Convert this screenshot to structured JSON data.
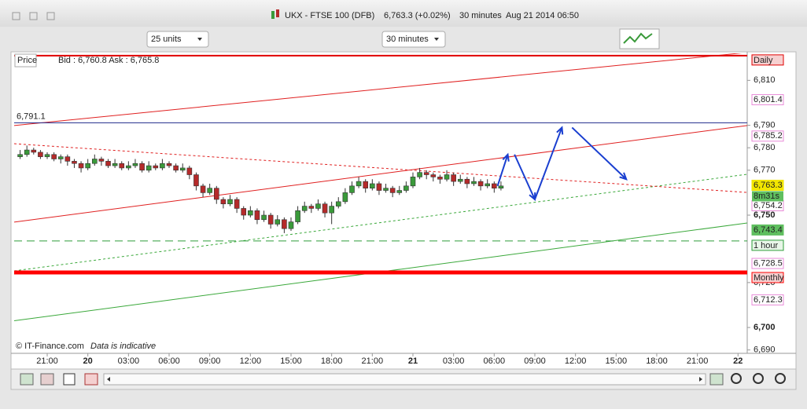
{
  "window": {
    "title": "UKX - FTSE 100 (DFB)",
    "quote": "6,763.3 (+0.02%)",
    "interval": "30 minutes",
    "timestamp": "Aug 21 2014 06:50"
  },
  "toolbar": {
    "units": "25 units",
    "interval": "30 minutes"
  },
  "chart_data": {
    "type": "candlestick",
    "price_label": "Price",
    "bid_ask": "Bid : 6,760.8 Ask : 6,765.8",
    "credit": "© IT-Finance.com",
    "disclaimer": "Data is indicative",
    "countdown": "8m31s",
    "up_color": "#3a9a3a",
    "down_color": "#b52a2a",
    "ylim": [
      6688.5,
      6822
    ],
    "xlim": [
      -0.88,
      107.36
    ],
    "yticks": [
      {
        "value": 6690,
        "label": "6,690"
      },
      {
        "value": 6700,
        "label": "6,700"
      },
      {
        "value": 6720,
        "label": "6,720"
      },
      {
        "value": 6750,
        "label": "6,750"
      },
      {
        "value": 6770,
        "label": "6,770"
      },
      {
        "value": 6780,
        "label": "6,780"
      },
      {
        "value": 6790,
        "label": "6,790"
      },
      {
        "value": 6810,
        "label": "6,810"
      }
    ],
    "xticks": [
      {
        "value": 4,
        "label": "21:00"
      },
      {
        "value": 10,
        "label": "20"
      },
      {
        "value": 16,
        "label": "03:00"
      },
      {
        "value": 22,
        "label": "06:00"
      },
      {
        "value": 28,
        "label": "09:00"
      },
      {
        "value": 34,
        "label": "12:00"
      },
      {
        "value": 40,
        "label": "15:00"
      },
      {
        "value": 46,
        "label": "18:00"
      },
      {
        "value": 52,
        "label": "21:00"
      },
      {
        "value": 58,
        "label": "21"
      },
      {
        "value": 64,
        "label": "03:00"
      },
      {
        "value": 70,
        "label": "06:00"
      },
      {
        "value": 76,
        "label": "09:00"
      },
      {
        "value": 82,
        "label": "12:00"
      },
      {
        "value": 88,
        "label": "15:00"
      },
      {
        "value": 94,
        "label": "18:00"
      },
      {
        "value": 100,
        "label": "21:00"
      },
      {
        "value": 106,
        "label": "22"
      }
    ],
    "candles": [
      [
        6776,
        6779,
        6775,
        6777
      ],
      [
        6777,
        6781,
        6776,
        6779
      ],
      [
        6779,
        6780,
        6777,
        6778
      ],
      [
        6778,
        6779,
        6775,
        6776
      ],
      [
        6776,
        6778,
        6775,
        6777
      ],
      [
        6777,
        6778,
        6774,
        6775
      ],
      [
        6775,
        6777,
        6773,
        6776
      ],
      [
        6776,
        6777,
        6772,
        6774
      ],
      [
        6774,
        6775,
        6771,
        6773
      ],
      [
        6773,
        6774,
        6769,
        6771
      ],
      [
        6771,
        6775,
        6770,
        6773
      ],
      [
        6773,
        6777,
        6772,
        6775
      ],
      [
        6775,
        6776,
        6772,
        6774
      ],
      [
        6774,
        6775,
        6771,
        6772
      ],
      [
        6772,
        6775,
        6771,
        6773
      ],
      [
        6773,
        6774,
        6770,
        6771
      ],
      [
        6771,
        6774,
        6770,
        6772
      ],
      [
        6772,
        6775,
        6771,
        6773
      ],
      [
        6773,
        6774,
        6769,
        6770
      ],
      [
        6770,
        6774,
        6769,
        6772
      ],
      [
        6772,
        6773,
        6770,
        6771
      ],
      [
        6771,
        6775,
        6770,
        6773
      ],
      [
        6773,
        6774,
        6771,
        6772
      ],
      [
        6772,
        6773,
        6769,
        6770
      ],
      [
        6770,
        6773,
        6769,
        6771
      ],
      [
        6771,
        6772,
        6766,
        6768
      ],
      [
        6768,
        6769,
        6761,
        6763
      ],
      [
        6763,
        6764,
        6758,
        6760
      ],
      [
        6760,
        6764,
        6759,
        6762
      ],
      [
        6762,
        6763,
        6755,
        6757
      ],
      [
        6757,
        6758,
        6753,
        6755
      ],
      [
        6755,
        6759,
        6754,
        6757
      ],
      [
        6757,
        6758,
        6751,
        6753
      ],
      [
        6753,
        6754,
        6748,
        6750
      ],
      [
        6750,
        6754,
        6749,
        6752
      ],
      [
        6752,
        6753,
        6746,
        6748
      ],
      [
        6748,
        6752,
        6747,
        6750
      ],
      [
        6750,
        6751,
        6744,
        6746
      ],
      [
        6746,
        6750,
        6745,
        6748
      ],
      [
        6748,
        6749,
        6742,
        6744
      ],
      [
        6744,
        6749,
        6743,
        6747
      ],
      [
        6747,
        6754,
        6746,
        6752
      ],
      [
        6752,
        6756,
        6751,
        6754
      ],
      [
        6754,
        6755,
        6751,
        6753
      ],
      [
        6753,
        6757,
        6752,
        6755
      ],
      [
        6755,
        6756,
        6749,
        6751
      ],
      [
        6751,
        6756,
        6746,
        6754
      ],
      [
        6754,
        6758,
        6753,
        6756
      ],
      [
        6756,
        6762,
        6755,
        6760
      ],
      [
        6760,
        6765,
        6759,
        6763
      ],
      [
        6763,
        6767,
        6762,
        6765
      ],
      [
        6765,
        6766,
        6760,
        6762
      ],
      [
        6762,
        6766,
        6761,
        6764
      ],
      [
        6764,
        6765,
        6759,
        6761
      ],
      [
        6761,
        6764,
        6760,
        6762
      ],
      [
        6762,
        6763,
        6758,
        6760
      ],
      [
        6760,
        6763,
        6759,
        6761
      ],
      [
        6761,
        6765,
        6760,
        6763
      ],
      [
        6763,
        6769,
        6762,
        6767
      ],
      [
        6767,
        6771,
        6766,
        6769
      ],
      [
        6769,
        6770,
        6766,
        6768
      ],
      [
        6768,
        6769,
        6765,
        6767
      ],
      [
        6767,
        6768,
        6764,
        6766
      ],
      [
        6766,
        6770,
        6765,
        6768
      ],
      [
        6768,
        6769,
        6763,
        6765
      ],
      [
        6765,
        6768,
        6764,
        6766
      ],
      [
        6766,
        6767,
        6762,
        6764
      ],
      [
        6764,
        6767,
        6763,
        6765
      ],
      [
        6765,
        6766,
        6761,
        6763
      ],
      [
        6763,
        6766,
        6762,
        6764
      ],
      [
        6764,
        6765,
        6760,
        6762
      ],
      [
        6762,
        6765,
        6761,
        6763
      ]
    ],
    "levels": [
      {
        "value": 6821,
        "label": "Daily",
        "color": "#e00000",
        "width": 2,
        "dash": false,
        "label_side": "right"
      },
      {
        "value": 6791.1,
        "label": "6,791.1",
        "color": "#1f2a8c",
        "width": 1,
        "dash": false,
        "label_side": "left"
      },
      {
        "value": 6738.5,
        "label": "1 hour",
        "color": "#2e9e3a",
        "width": 1,
        "dash": true,
        "label_side": "right"
      },
      {
        "value": 6724.5,
        "label": "Monthly",
        "color": "#ff0000",
        "width": 5,
        "dash": false,
        "label_side": "right"
      }
    ],
    "price_tags": [
      {
        "value": 6801.4,
        "label": "6,801.4",
        "color": "#e88ad8"
      },
      {
        "value": 6785.2,
        "label": "6,785.2",
        "color": "#e88ad8"
      },
      {
        "value": 6763.3,
        "label": "6,763.3",
        "color": "#f2e600"
      },
      {
        "value": 6754.2,
        "label": "6,754.2",
        "color": "#e88ad8"
      },
      {
        "value": 6743.4,
        "label": "6,743.4",
        "color": "#5fbf5f"
      },
      {
        "value": 6728.5,
        "label": "6,728.5",
        "color": "#e88ad8"
      },
      {
        "value": 6712.3,
        "label": "6,712.3",
        "color": "#e88ad8"
      }
    ],
    "trendlines": [
      {
        "points": [
          -0.88,
          6789.9,
          107.36,
          6822.4
        ],
        "color": "#e02020",
        "dash": false
      },
      {
        "points": [
          -0.88,
          6746.9,
          107.36,
          6789.9
        ],
        "color": "#e02020",
        "dash": false
      },
      {
        "points": [
          -0.88,
          6703,
          107.36,
          6746.5
        ],
        "color": "#3aa83a",
        "dash": false
      },
      {
        "points": [
          -0.88,
          6725.2,
          107.36,
          6768.2
        ],
        "color": "#3aa83a",
        "dash": true
      },
      {
        "points": [
          -0.88,
          6781.8,
          107.36,
          6760.1
        ],
        "color": "#e02020",
        "dash": true
      }
    ],
    "arrows": [
      {
        "points": [
          70.5,
          6763,
          72,
          6777
        ],
        "color": "#1a3fd0"
      },
      {
        "points": [
          73,
          6777,
          76,
          6757
        ],
        "color": "#1a3fd0"
      },
      {
        "points": [
          76,
          6757,
          80,
          6789
        ],
        "color": "#1a3fd0"
      },
      {
        "points": [
          81.5,
          6789,
          89.5,
          6766
        ],
        "color": "#1a3fd0"
      }
    ]
  }
}
